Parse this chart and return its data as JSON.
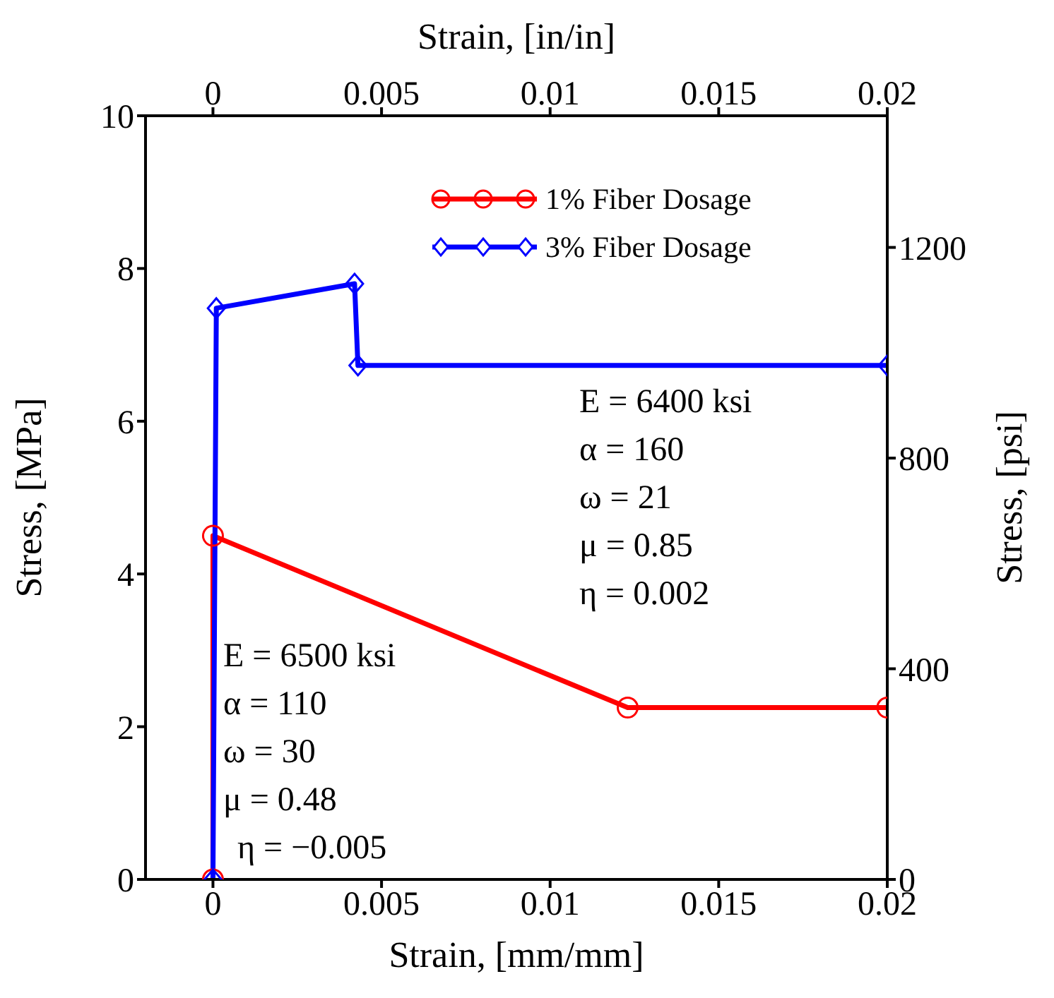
{
  "chart_data": {
    "type": "line",
    "xlabel": "Strain, [mm/mm]",
    "ylabel": "Stress, [MPa]",
    "x2label": "Strain, [in/in]",
    "y2label": "Stress, [psi]",
    "xlim": [
      -0.002,
      0.02
    ],
    "xticks": [
      0,
      0.005,
      0.01,
      0.015,
      0.02
    ],
    "x2lim": [
      -0.002,
      0.02
    ],
    "x2ticks": [
      0,
      0.005,
      0.01,
      0.015,
      0.02
    ],
    "ylim": [
      0,
      10
    ],
    "yticks": [
      0,
      2,
      4,
      6,
      8,
      10
    ],
    "y2lim": [
      0,
      1450
    ],
    "y2ticks": [
      0,
      400,
      800,
      1200
    ],
    "legend": "top right",
    "series": [
      {
        "name": "1% Fiber Dosage",
        "color": "#ff0000",
        "marker": "circle",
        "x": [
          0,
          0,
          0.0123,
          0.02
        ],
        "values": [
          0,
          4.5,
          2.25,
          2.25
        ]
      },
      {
        "name": "3% Fiber Dosage",
        "color": "#0000ff",
        "marker": "diamond",
        "x": [
          0,
          0.0001,
          0.0042,
          0.0043,
          0.02
        ],
        "values": [
          0,
          7.48,
          7.8,
          6.73,
          6.73
        ]
      }
    ],
    "annotations": [
      "E = 6400 ksi",
      "α = 160",
      "ω = 21",
      "μ = 0.85",
      "η = 0.002",
      "E = 6500 ksi",
      "α = 110",
      "ω = 30",
      "μ = 0.48",
      "η = −0.005"
    ]
  }
}
